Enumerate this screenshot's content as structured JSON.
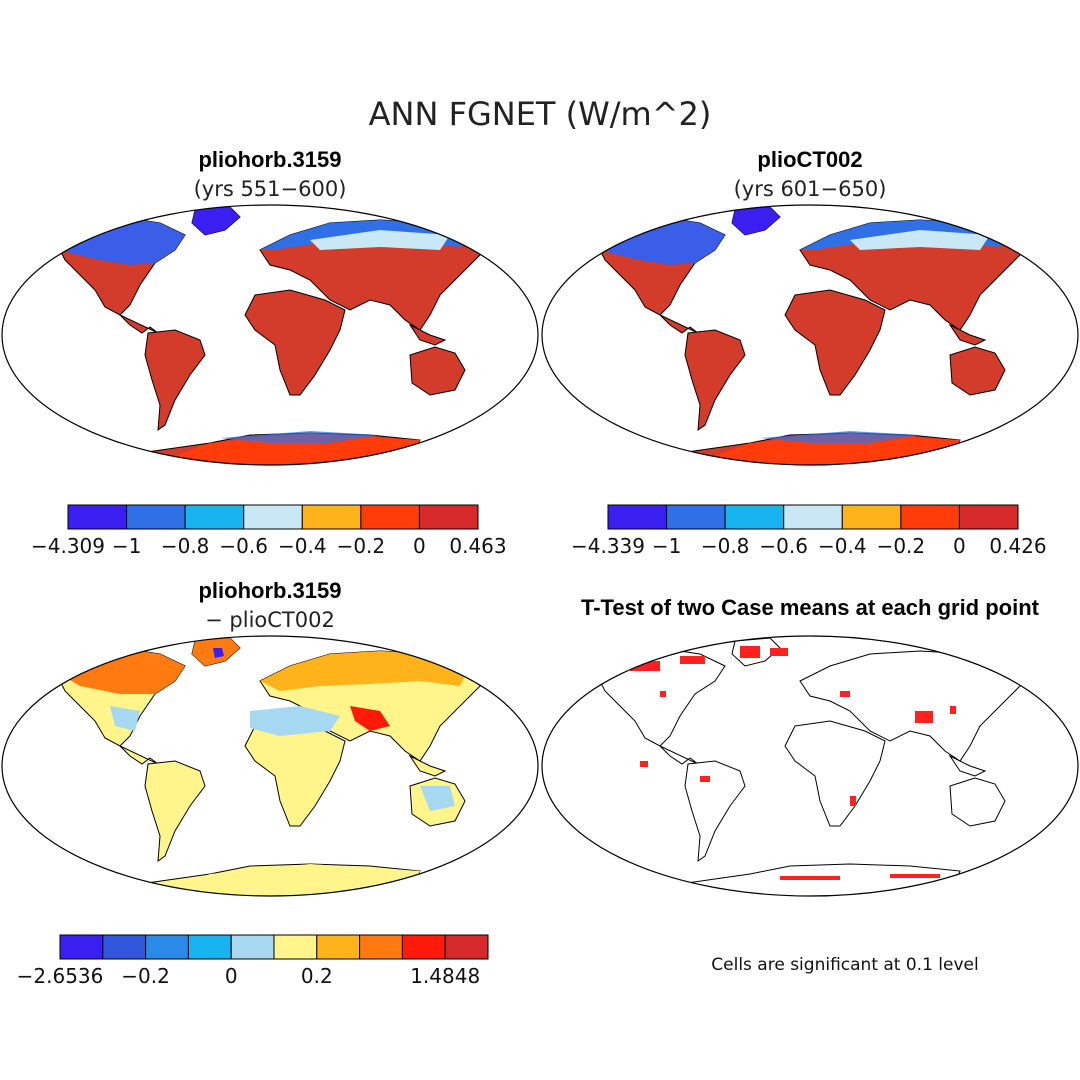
{
  "figure": {
    "title": "ANN FGNET (W/m^2)",
    "footnote": "Cells are significant at 0.1 level"
  },
  "panels": [
    {
      "id": "p1",
      "title": "pliohorb.3159",
      "subtitle": "(yrs 551−600)",
      "colorbar": {
        "colors": [
          "#3a1ff0",
          "#3070e6",
          "#18b4f0",
          "#c8e8f5",
          "#ffb31a",
          "#ff3c0a",
          "#d62a2a"
        ],
        "labels": [
          "−4.309",
          "−1",
          "−0.8",
          "−0.6",
          "−0.4",
          "−0.2",
          "0",
          "0.463"
        ]
      }
    },
    {
      "id": "p2",
      "title": "plioCT002",
      "subtitle": "(yrs 601−650)",
      "colorbar": {
        "colors": [
          "#3a1ff0",
          "#3070e6",
          "#18b4f0",
          "#c8e8f5",
          "#ffb31a",
          "#ff3c0a",
          "#d62a2a"
        ],
        "labels": [
          "−4.339",
          "−1",
          "−0.8",
          "−0.6",
          "−0.4",
          "−0.2",
          "0",
          "0.426"
        ]
      }
    },
    {
      "id": "p3",
      "title": "pliohorb.3159",
      "subtitle": "− plioCT002",
      "colorbar": {
        "colors": [
          "#3a1ff0",
          "#3056dc",
          "#2a8ae8",
          "#18b4f0",
          "#a6d8f2",
          "#fff58a",
          "#ffb31a",
          "#ff7a10",
          "#ff1a0a",
          "#d62a2a"
        ],
        "labels": [
          "−2.6536",
          "",
          "−0.2",
          "",
          "0",
          "",
          "0.2",
          "",
          "",
          "1.4848"
        ]
      }
    },
    {
      "id": "p4",
      "title": "T-Test of two Case means at each grid point",
      "subtitle": ""
    }
  ]
}
